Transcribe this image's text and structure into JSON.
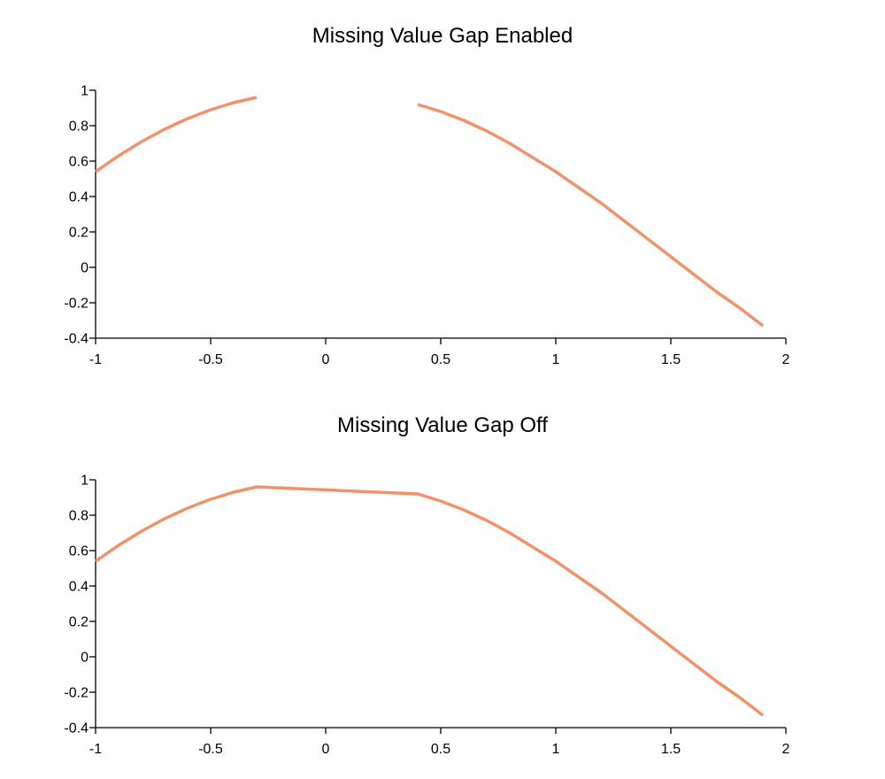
{
  "chart_data": [
    {
      "type": "line",
      "title": "Missing Value Gap Enabled",
      "gap_mode": "gap",
      "xlim": [
        -1,
        2
      ],
      "ylim": [
        -0.4,
        1
      ],
      "x_ticks": [
        -1,
        -0.5,
        0,
        0.5,
        1,
        1.5,
        2
      ],
      "x_tick_labels": [
        "-1",
        "-0.5",
        "0",
        "0.5",
        "1",
        "1.5",
        "2"
      ],
      "y_ticks": [
        -0.4,
        -0.2,
        0,
        0.2,
        0.4,
        0.6,
        0.8,
        1
      ],
      "y_tick_labels": [
        "-0.4",
        "-0.2",
        "0",
        "0.2",
        "0.4",
        "0.6",
        "0.8",
        "1"
      ],
      "grid": false,
      "series": [
        {
          "color": "#f0936a",
          "x": [
            -1,
            -0.9,
            -0.8,
            -0.7,
            -0.6,
            -0.5,
            -0.4,
            -0.3,
            -0.2,
            -0.1,
            0,
            0.1,
            0.2,
            0.3,
            0.4,
            0.5,
            0.6,
            0.7,
            0.8,
            0.9,
            1,
            1.1,
            1.2,
            1.3,
            1.4,
            1.5,
            1.6,
            1.7,
            1.8,
            1.9
          ],
          "y": [
            0.54,
            0.63,
            0.71,
            0.78,
            0.84,
            0.89,
            0.93,
            0.96,
            null,
            null,
            null,
            null,
            null,
            null,
            0.92,
            0.88,
            0.83,
            0.77,
            0.7,
            0.62,
            0.54,
            0.45,
            0.36,
            0.26,
            0.16,
            0.06,
            -0.04,
            -0.14,
            -0.23,
            -0.33
          ]
        }
      ]
    },
    {
      "type": "line",
      "title": "Missing Value Gap Off",
      "gap_mode": "connect",
      "xlim": [
        -1,
        2
      ],
      "ylim": [
        -0.4,
        1
      ],
      "x_ticks": [
        -1,
        -0.5,
        0,
        0.5,
        1,
        1.5,
        2
      ],
      "x_tick_labels": [
        "-1",
        "-0.5",
        "0",
        "0.5",
        "1",
        "1.5",
        "2"
      ],
      "y_ticks": [
        -0.4,
        -0.2,
        0,
        0.2,
        0.4,
        0.6,
        0.8,
        1
      ],
      "y_tick_labels": [
        "-0.4",
        "-0.2",
        "0",
        "0.2",
        "0.4",
        "0.6",
        "0.8",
        "1"
      ],
      "grid": false,
      "series": [
        {
          "color": "#f0936a",
          "x": [
            -1,
            -0.9,
            -0.8,
            -0.7,
            -0.6,
            -0.5,
            -0.4,
            -0.3,
            -0.2,
            -0.1,
            0,
            0.1,
            0.2,
            0.3,
            0.4,
            0.5,
            0.6,
            0.7,
            0.8,
            0.9,
            1,
            1.1,
            1.2,
            1.3,
            1.4,
            1.5,
            1.6,
            1.7,
            1.8,
            1.9
          ],
          "y": [
            0.54,
            0.63,
            0.71,
            0.78,
            0.84,
            0.89,
            0.93,
            0.96,
            null,
            null,
            null,
            null,
            null,
            null,
            0.92,
            0.88,
            0.83,
            0.77,
            0.7,
            0.62,
            0.54,
            0.45,
            0.36,
            0.26,
            0.16,
            0.06,
            -0.04,
            -0.14,
            -0.23,
            -0.33
          ]
        }
      ]
    }
  ]
}
